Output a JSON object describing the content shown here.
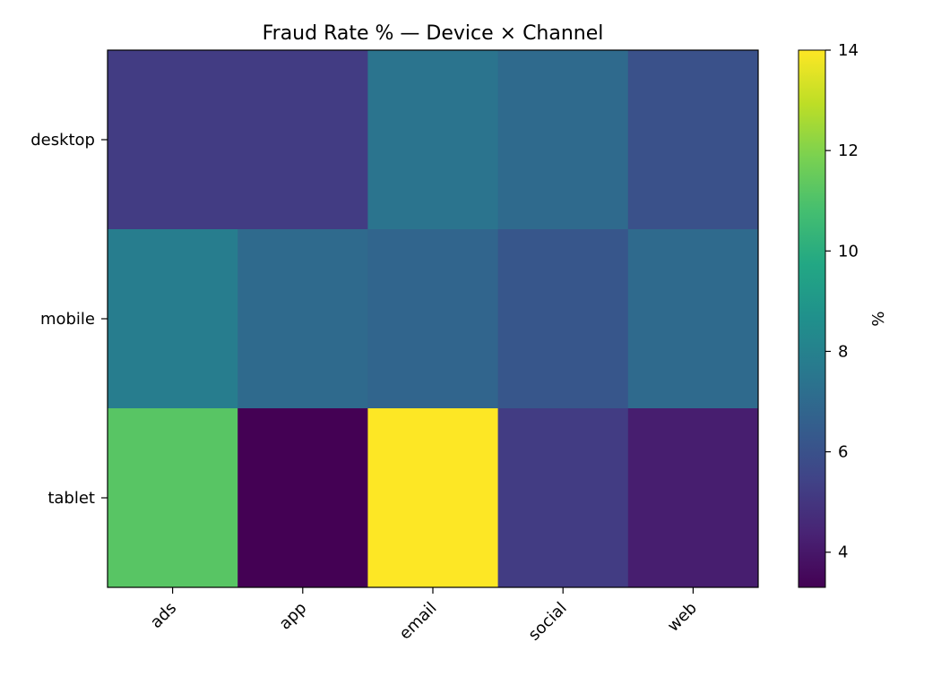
{
  "chart_data": {
    "type": "heatmap",
    "title": "Fraud Rate % — Device × Channel",
    "xlabel": "",
    "ylabel": "",
    "x_categories": [
      "ads",
      "app",
      "email",
      "social",
      "web"
    ],
    "y_categories": [
      "desktop",
      "mobile",
      "tablet"
    ],
    "values": [
      [
        5.2,
        5.2,
        7.4,
        7.0,
        6.0
      ],
      [
        7.8,
        7.0,
        6.8,
        6.2,
        7.0
      ],
      [
        11.2,
        3.3,
        14.0,
        5.2,
        4.2
      ]
    ],
    "colorbar": {
      "label": "%",
      "range": [
        3.3,
        14.0
      ],
      "ticks": [
        "4",
        "6",
        "8",
        "10",
        "12",
        "14"
      ],
      "tick_values": [
        4,
        6,
        8,
        10,
        12,
        14
      ],
      "colormap": "viridis"
    },
    "grid": false
  }
}
